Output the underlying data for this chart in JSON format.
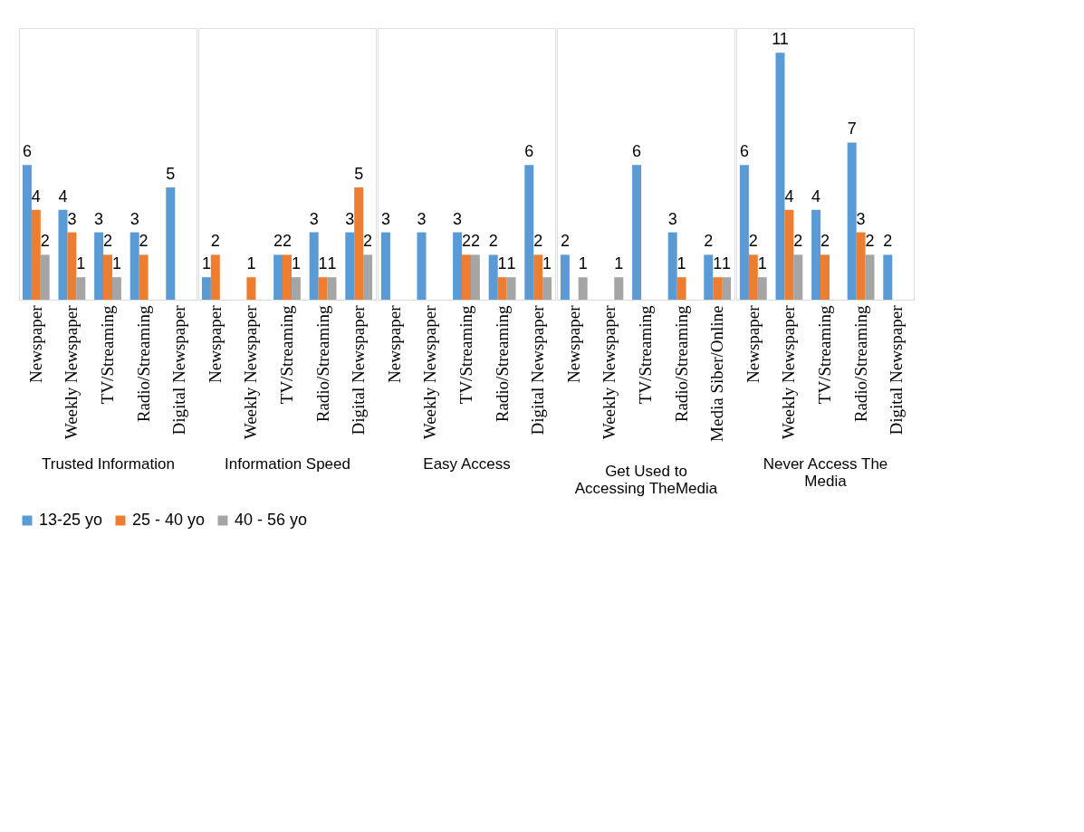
{
  "chart_data": {
    "type": "bar",
    "categories": [
      "Newspaper",
      "Weekly Newspaper",
      "TV/Streaming",
      "Radio/Streaming",
      "Digital Newspaper",
      "Newspaper",
      "Weekly Newspaper",
      "TV/Streaming",
      "Radio/Streaming",
      "Digital Newspaper",
      "Newspaper",
      "Weekly Newspaper",
      "TV/Streaming",
      "Radio/Streaming",
      "Digital Newspaper",
      "Newspaper",
      "Weekly Newspaper",
      "TV/Streaming",
      "Radio/Streaming",
      "Media  Siber/Online",
      "Newspaper",
      "Weekly Newspaper",
      "TV/Streaming",
      "Radio/Streaming",
      "Digital  Newspaper"
    ],
    "annotations": [
      "Trusted Information",
      "Information Speed",
      "Easy Access",
      "Get Used to Accessing TheMedia",
      "Never Access The Media"
    ],
    "series": [
      {
        "name": "13-25 yo",
        "color": "#5b9bd5",
        "values": [
          6,
          4,
          3,
          3,
          5,
          1,
          null,
          2,
          3,
          3,
          3,
          3,
          3,
          2,
          6,
          2,
          null,
          6,
          3,
          2,
          6,
          11,
          4,
          7,
          2
        ]
      },
      {
        "name": "25 - 40 yo",
        "color": "#ed7d31",
        "values": [
          4,
          3,
          2,
          2,
          null,
          2,
          1,
          2,
          1,
          5,
          null,
          null,
          2,
          1,
          2,
          null,
          null,
          null,
          1,
          1,
          2,
          4,
          2,
          3,
          null
        ]
      },
      {
        "name": "40 - 56 yo",
        "color": "#a5a5a5",
        "values": [
          2,
          1,
          1,
          null,
          null,
          null,
          null,
          1,
          1,
          2,
          null,
          null,
          2,
          1,
          1,
          1,
          1,
          null,
          null,
          1,
          1,
          2,
          null,
          2,
          null
        ]
      }
    ],
    "data_labels": true,
    "legend": "bottom"
  }
}
